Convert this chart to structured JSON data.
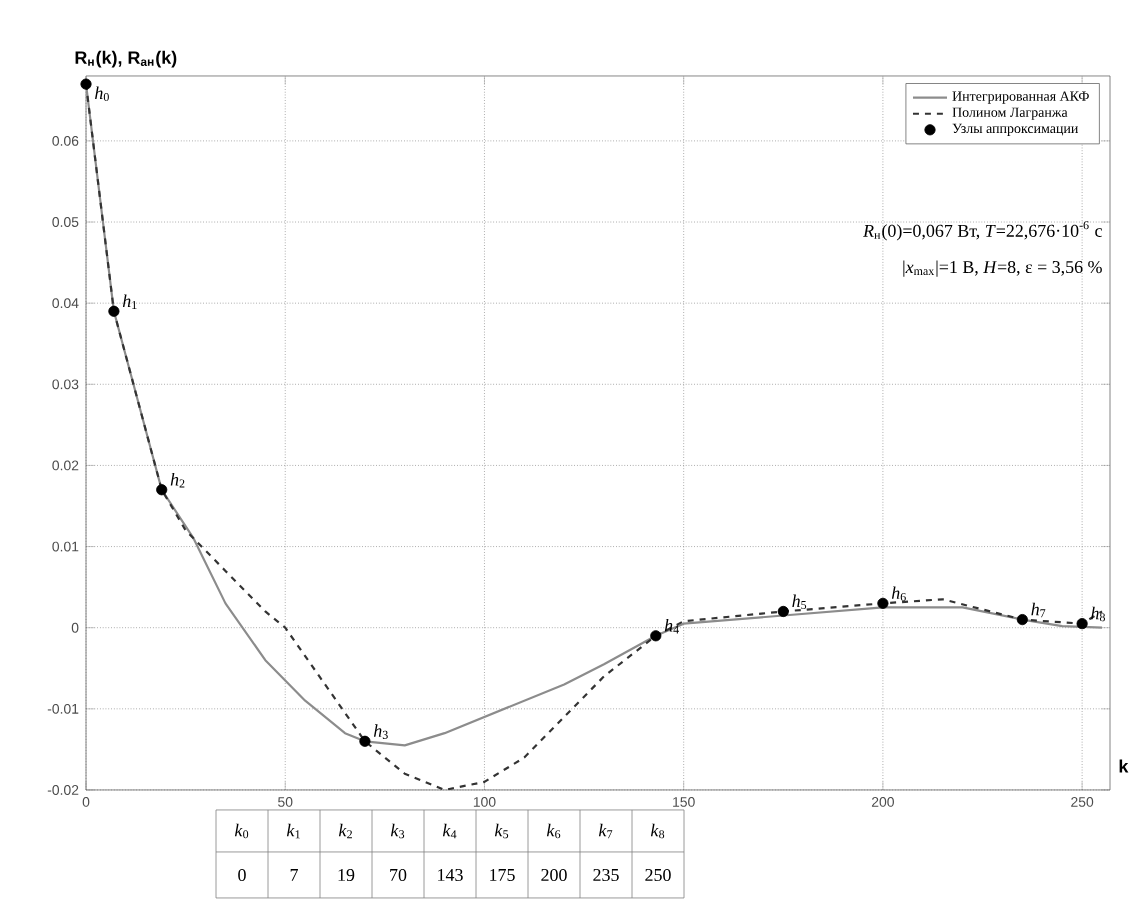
{
  "chart_data": {
    "type": "line",
    "ylabel": "R$_{н}$(k), R$_{ан}$(k)",
    "xlabel": "k",
    "xlim": [
      0,
      257
    ],
    "ylim": [
      -0.02,
      0.068
    ],
    "xticks": [
      0,
      50,
      100,
      150,
      200,
      250
    ],
    "yticks": [
      -0.02,
      -0.01,
      0,
      0.01,
      0.02,
      0.03,
      0.04,
      0.05,
      0.06
    ],
    "grid": true,
    "legend": "top right",
    "series": [
      {
        "name": "Интегрированная АКФ",
        "type": "line",
        "color": "#8c8c8c",
        "line_style": "solid",
        "marker": "none",
        "x": [
          0,
          7,
          19,
          27,
          35,
          45,
          55,
          65,
          70,
          80,
          90,
          100,
          110,
          120,
          130,
          143,
          150,
          175,
          200,
          220,
          235,
          245,
          255
        ],
        "values": [
          0.067,
          0.039,
          0.017,
          0.011,
          0.003,
          -0.004,
          -0.009,
          -0.013,
          -0.014,
          -0.0145,
          -0.013,
          -0.011,
          -0.009,
          -0.007,
          -0.0045,
          -0.001,
          0.0005,
          0.0015,
          0.0025,
          0.0025,
          0.001,
          0.0002,
          0.0
        ]
      },
      {
        "name": "Полином Лагранжа",
        "type": "line",
        "color": "#333333",
        "line_style": "dashed",
        "marker": "none",
        "x": [
          0,
          7,
          19,
          25,
          35,
          45,
          50,
          60,
          70,
          80,
          90,
          100,
          110,
          120,
          130,
          143,
          150,
          175,
          200,
          215,
          235,
          250,
          255
        ],
        "values": [
          0.067,
          0.039,
          0.017,
          0.012,
          0.007,
          0.002,
          0.0,
          -0.007,
          -0.014,
          -0.018,
          -0.02,
          -0.019,
          -0.016,
          -0.011,
          -0.006,
          -0.001,
          0.0008,
          0.002,
          0.003,
          0.0035,
          0.001,
          0.0005,
          0.002
        ]
      },
      {
        "name": "Узлы аппроксимации",
        "type": "scatter",
        "color": "#000000",
        "marker": "circle",
        "x": [
          0,
          7,
          19,
          70,
          143,
          175,
          200,
          235,
          250
        ],
        "values": [
          0.067,
          0.039,
          0.017,
          -0.014,
          -0.001,
          0.002,
          0.003,
          0.001,
          0.0005
        ]
      }
    ],
    "annotations": [
      {
        "text": "*h*$_{0}$",
        "x": 0,
        "y": 0.067
      },
      {
        "text": "*h*$_{1}$",
        "x": 7,
        "y": 0.039
      },
      {
        "text": "*h*$_{2}$",
        "x": 19,
        "y": 0.017
      },
      {
        "text": "*h*$_{3}$",
        "x": 70,
        "y": -0.014
      },
      {
        "text": "*h*$_{4}$",
        "x": 143,
        "y": -0.001
      },
      {
        "text": "*h*$_{5}$",
        "x": 175,
        "y": 0.002
      },
      {
        "text": "*h*$_{6}$",
        "x": 200,
        "y": 0.003
      },
      {
        "text": "*h*$_{7}$",
        "x": 235,
        "y": 0.001
      },
      {
        "text": "*h*$_{8}$",
        "x": 250,
        "y": 0.0005
      },
      "*R*$_{н}$(0)=0,067 Вт, *T*=22,676·10$^{-6}$ с",
      "|*x*$_{max}$|=1 В, *H*=8, ε = 3,56 %",
      "*k*$_{0}$",
      "*k*$_{1}$",
      "*k*$_{2}$",
      "*k*$_{3}$",
      "*k*$_{4}$",
      "*k*$_{5}$",
      "*k*$_{6}$",
      "*k*$_{7}$",
      "*k*$_{8}$",
      "0",
      "7",
      "19",
      "70",
      "143",
      "175",
      "200",
      "235",
      "250"
    ]
  }
}
